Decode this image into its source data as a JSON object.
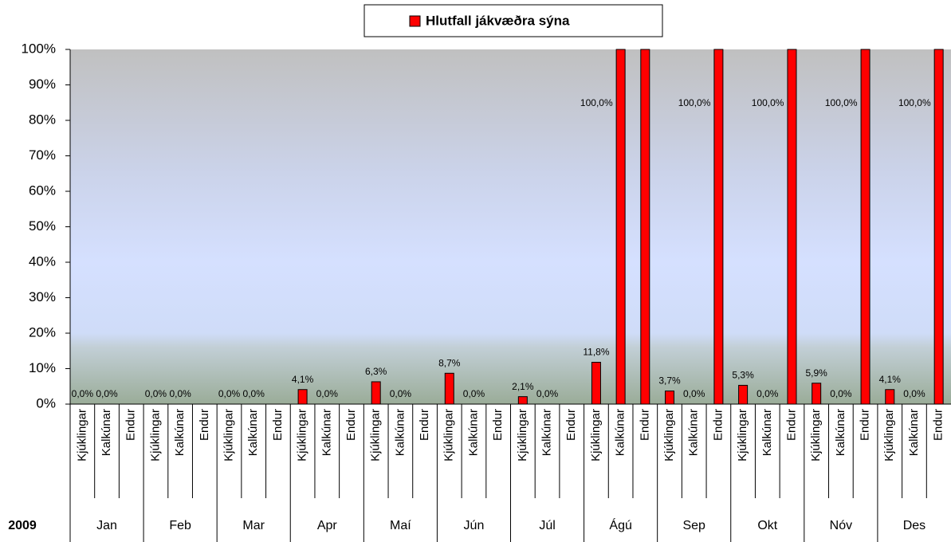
{
  "chart_data": {
    "type": "bar",
    "legend": "top",
    "series": [
      {
        "name": "Hlutfall jákvæðra sýna",
        "color": "#ff0000",
        "values": [
          0,
          0,
          null,
          0,
          0,
          null,
          0,
          0,
          null,
          4.1,
          0,
          null,
          6.3,
          0,
          null,
          8.7,
          0,
          null,
          2.1,
          0,
          null,
          11.8,
          100,
          100,
          3.7,
          0,
          100,
          5.3,
          0,
          100,
          5.9,
          0,
          100,
          4.1,
          0,
          100
        ],
        "value_labels": [
          "0,0%",
          "0,0%",
          null,
          "0,0%",
          "0,0%",
          null,
          "0,0%",
          "0,0%",
          null,
          "4,1%",
          "0,0%",
          null,
          "6,3%",
          "0,0%",
          null,
          "8,7%",
          "0,0%",
          null,
          "2,1%",
          "0,0%",
          null,
          "11,8%",
          "100,0%",
          null,
          "3,7%",
          "0,0%",
          "100,0%",
          "5,3%",
          "0,0%",
          "100,0%",
          "5,9%",
          "0,0%",
          "100,0%",
          "4,1%",
          "0,0%",
          "100,0%"
        ]
      }
    ],
    "categories": [
      "Kjúklingar",
      "Kalkúnar",
      "Endur",
      "Kjúklingar",
      "Kalkúnar",
      "Endur",
      "Kjúklingar",
      "Kalkúnar",
      "Endur",
      "Kjúklingar",
      "Kalkúnar",
      "Endur",
      "Kjúklingar",
      "Kalkúnar",
      "Endur",
      "Kjúklingar",
      "Kalkúnar",
      "Endur",
      "Kjúklingar",
      "Kalkúnar",
      "Endur",
      "Kjúklingar",
      "Kalkúnar",
      "Endur",
      "Kjúklingar",
      "Kalkúnar",
      "Endur",
      "Kjúklingar",
      "Kalkúnar",
      "Endur",
      "Kjúklingar",
      "Kalkúnar",
      "Endur",
      "Kjúklingar",
      "Kalkúnar",
      "Endur"
    ],
    "groups": [
      "Jan",
      "Feb",
      "Mar",
      "Apr",
      "Maí",
      "Jún",
      "Júl",
      "Ágú",
      "Sep",
      "Okt",
      "Nóv",
      "Des"
    ],
    "group_title": "2009",
    "ylim": [
      0,
      100
    ],
    "yticks": [
      {
        "value": 0,
        "label": "0%"
      },
      {
        "value": 10,
        "label": "10%"
      },
      {
        "value": 20,
        "label": "20%"
      },
      {
        "value": 30,
        "label": "30%"
      },
      {
        "value": 40,
        "label": "40%"
      },
      {
        "value": 50,
        "label": "50%"
      },
      {
        "value": 60,
        "label": "60%"
      },
      {
        "value": 70,
        "label": "70%"
      },
      {
        "value": 80,
        "label": "80%"
      },
      {
        "value": 90,
        "label": "90%"
      },
      {
        "value": 100,
        "label": "100%"
      }
    ]
  }
}
